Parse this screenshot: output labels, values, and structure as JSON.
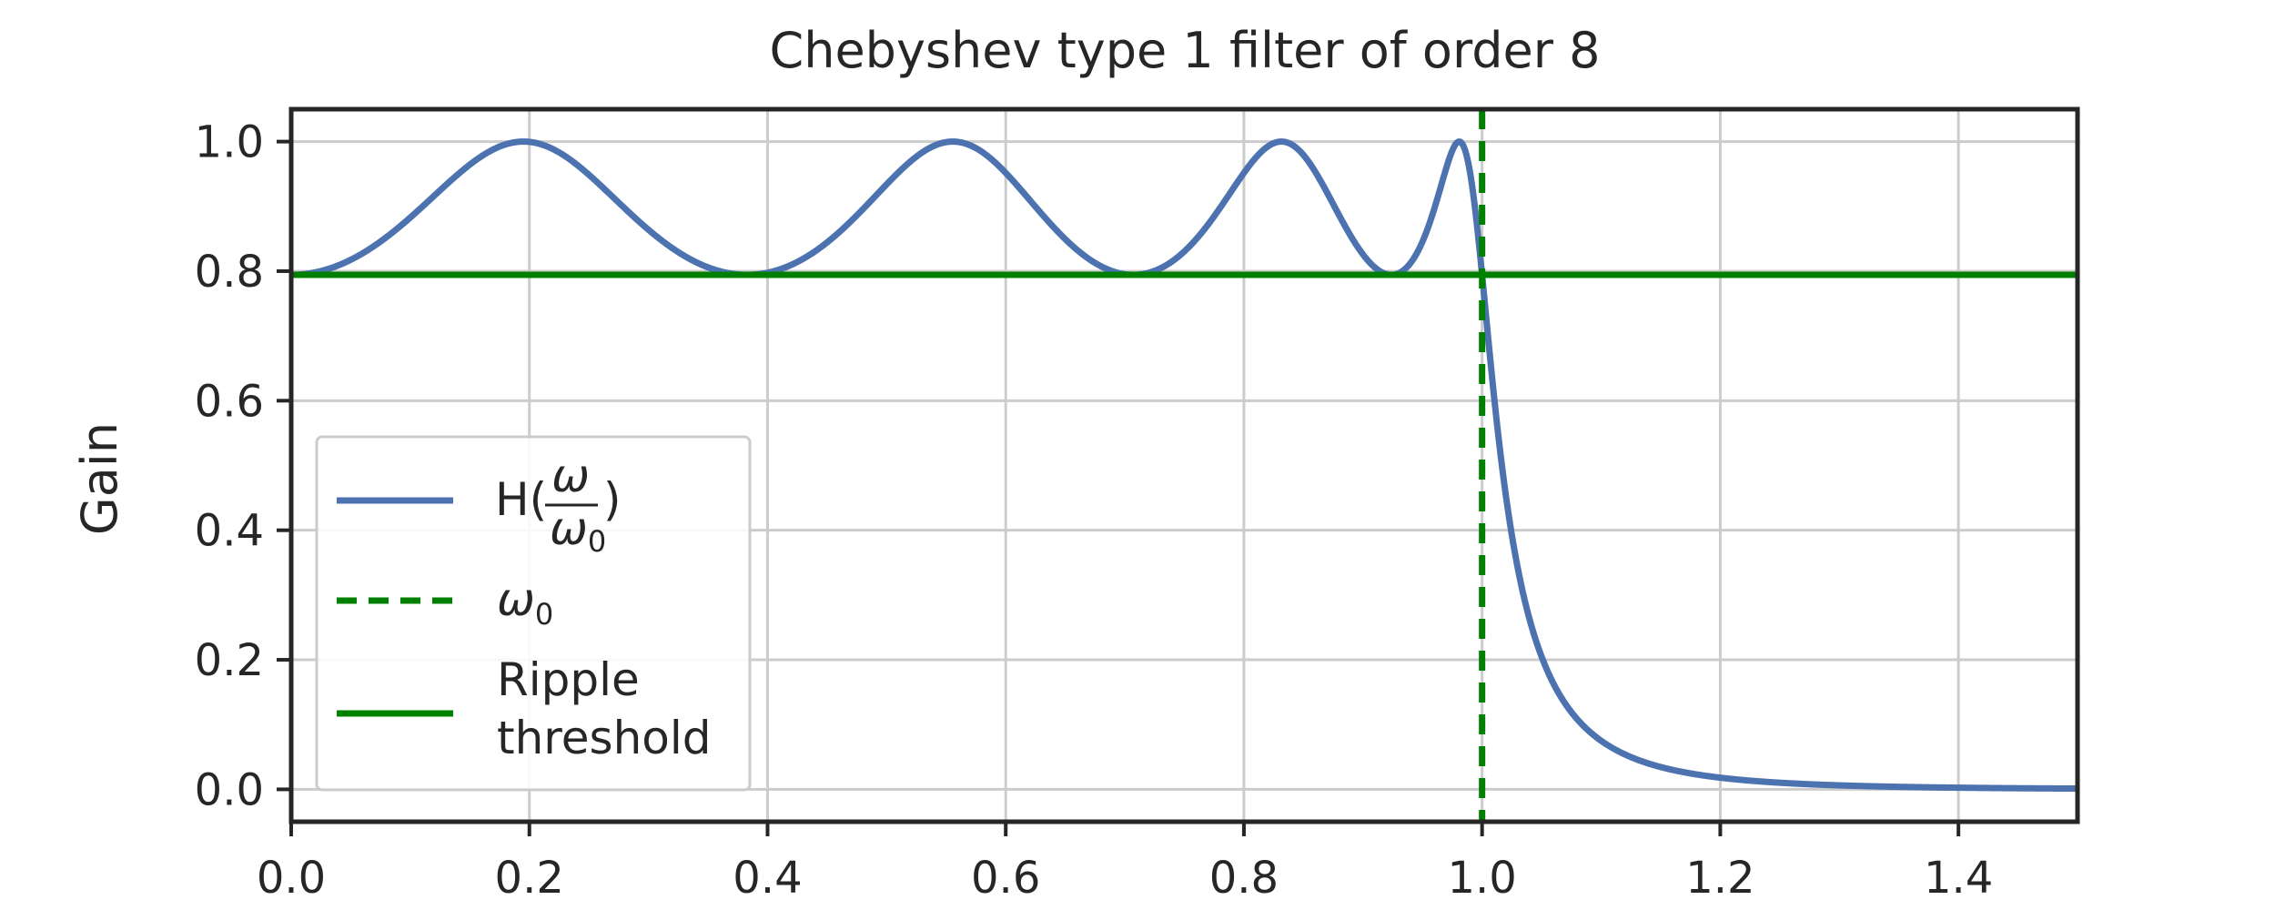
{
  "chart_data": {
    "type": "line",
    "title": "Chebyshev type 1 filter of order 8",
    "xlabel": "",
    "ylabel": "Gain",
    "xlim": [
      0.0,
      1.5
    ],
    "ylim": [
      -0.05,
      1.05
    ],
    "xticks": [
      "0.0",
      "0.2",
      "0.4",
      "0.6",
      "0.8",
      "1.0",
      "1.2",
      "1.4"
    ],
    "yticks": [
      "0.0",
      "0.2",
      "0.4",
      "0.6",
      "0.8",
      "1.0"
    ],
    "grid": true,
    "legend_position": "center-left",
    "filter": {
      "order": 8,
      "ripple_gain": 0.7943
    },
    "series": [
      {
        "name": "H(ω/ω0)",
        "kind": "gain-curve",
        "color": "#4c72b0",
        "x_range": [
          0.0,
          1.5
        ]
      },
      {
        "name": "ω0",
        "kind": "vertical-line",
        "x": 1.0,
        "color": "#008000",
        "dash": true
      },
      {
        "name": "Ripple threshold",
        "kind": "horizontal-line",
        "y": 0.7943,
        "color": "#008000"
      }
    ],
    "legend": {
      "h_prefix": "H(",
      "h_num": "ω",
      "h_den": "ω",
      "h_den_sub": "0",
      "h_suffix": ")",
      "omega": "ω",
      "omega_sub": "0",
      "ripple_line1": "Ripple",
      "ripple_line2": "threshold"
    }
  }
}
